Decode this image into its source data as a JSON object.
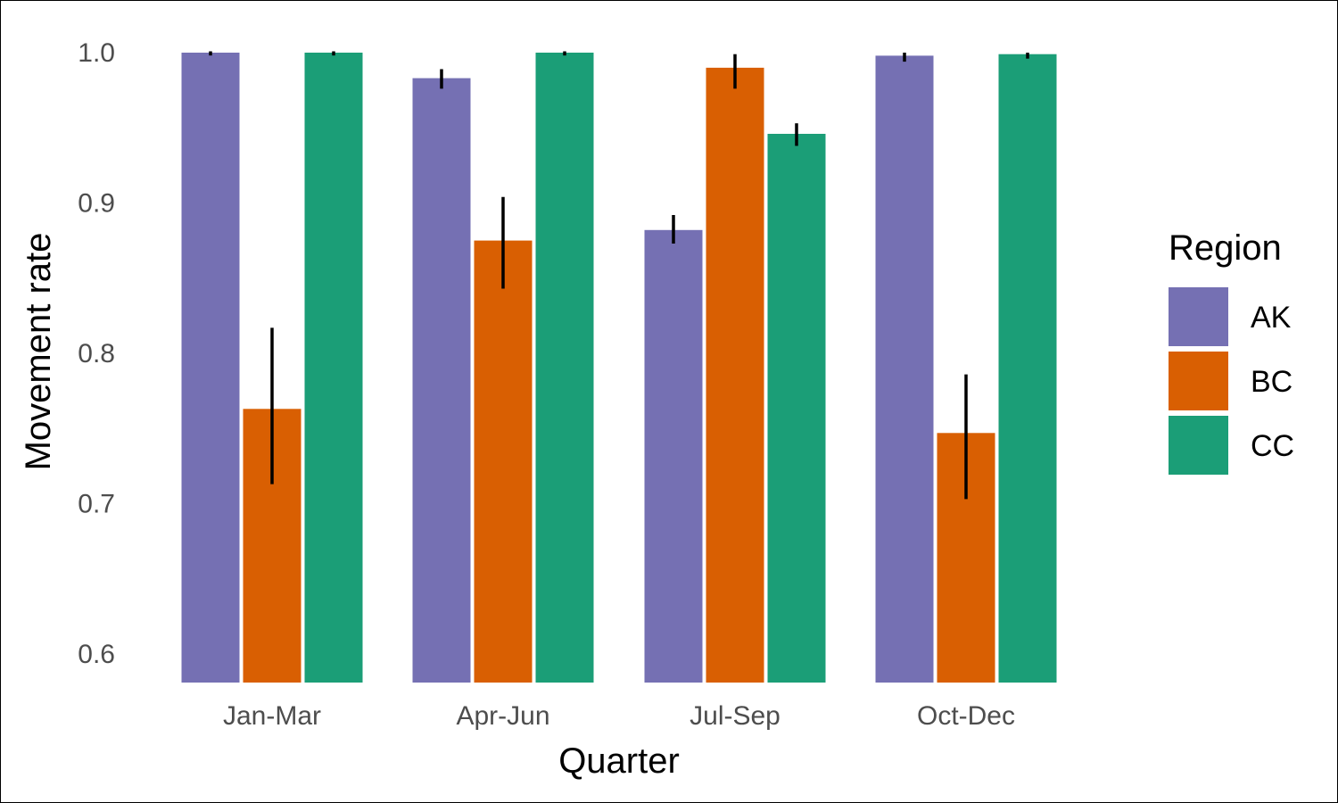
{
  "chart_data": {
    "type": "bar",
    "title": "",
    "xlabel": "Quarter",
    "ylabel": "Movement rate",
    "categories": [
      "Jan-Mar",
      "Apr-Jun",
      "Jul-Sep",
      "Oct-Dec"
    ],
    "ylim": [
      0.58,
      1.0
    ],
    "yticks": [
      0.6,
      0.7,
      0.8,
      0.9,
      1.0
    ],
    "ytick_labels": [
      "0.6",
      "0.7",
      "0.8",
      "0.9",
      "1.0"
    ],
    "grid": false,
    "legend": {
      "title": "Region",
      "position": "right"
    },
    "series": [
      {
        "name": "AK",
        "color": "#7570b3",
        "values": [
          1.0,
          0.983,
          0.882,
          0.998
        ],
        "err_low": [
          0.999,
          0.976,
          0.873,
          0.994
        ],
        "err_high": [
          1.0,
          0.989,
          0.892,
          1.0
        ]
      },
      {
        "name": "BC",
        "color": "#d95f02",
        "values": [
          0.763,
          0.875,
          0.99,
          0.747
        ],
        "err_low": [
          0.713,
          0.843,
          0.976,
          0.703
        ],
        "err_high": [
          0.817,
          0.904,
          0.999,
          0.786
        ]
      },
      {
        "name": "CC",
        "color": "#1b9e77",
        "values": [
          1.0,
          1.0,
          0.946,
          0.999
        ],
        "err_low": [
          0.999,
          0.999,
          0.938,
          0.996
        ],
        "err_high": [
          1.0,
          1.0,
          0.953,
          1.0
        ]
      }
    ]
  }
}
